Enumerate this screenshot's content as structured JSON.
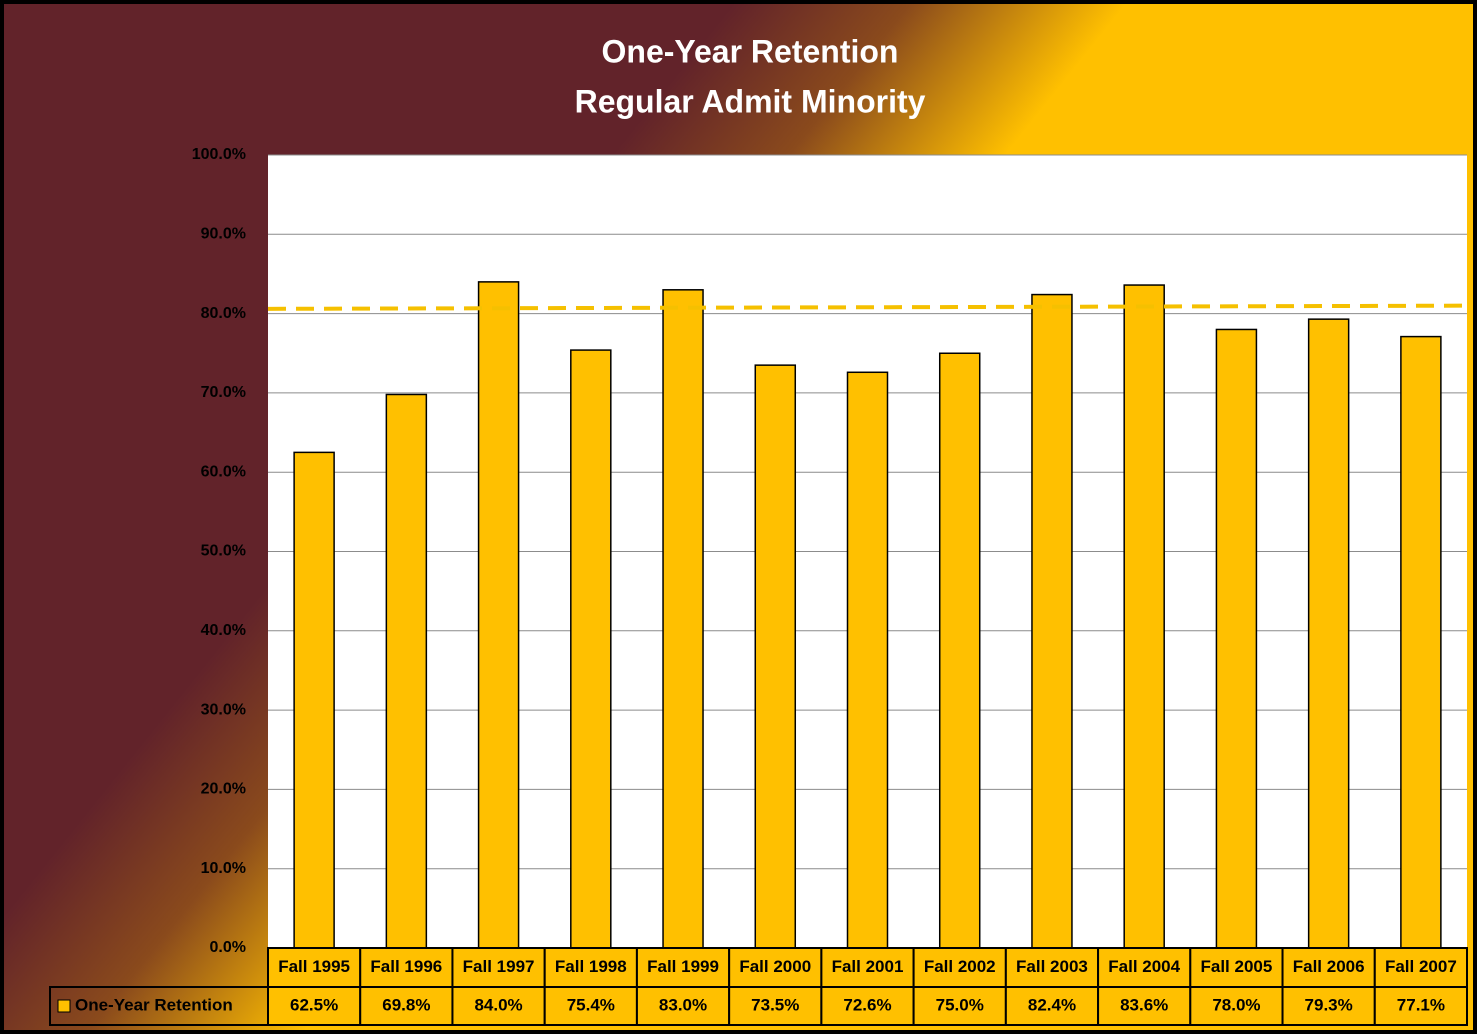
{
  "chart_data": {
    "type": "bar",
    "title": "One-Year Retention",
    "subtitle": "Regular Admit Minority",
    "categories": [
      "Fall 1995",
      "Fall 1996",
      "Fall 1997",
      "Fall 1998",
      "Fall 1999",
      "Fall 2000",
      "Fall 2001",
      "Fall 2002",
      "Fall 2003",
      "Fall 2004",
      "Fall 2005",
      "Fall 2006",
      "Fall 2007"
    ],
    "series": [
      {
        "name": "One-Year Retention",
        "color": "#ffc000",
        "values": [
          62.5,
          69.8,
          84.0,
          75.4,
          83.0,
          73.5,
          72.6,
          75.0,
          82.4,
          83.6,
          78.0,
          79.3,
          77.1
        ],
        "value_labels": [
          "62.5%",
          "69.8%",
          "84.0%",
          "75.4%",
          "83.0%",
          "73.5%",
          "72.6%",
          "75.0%",
          "82.4%",
          "83.6%",
          "78.0%",
          "79.3%",
          "77.1%"
        ]
      }
    ],
    "reference_line": {
      "values": [
        80.6,
        81.0
      ],
      "color": "#f5c000",
      "dashed": true
    },
    "ylim": [
      0,
      100
    ],
    "yticks": [
      {
        "value": 0,
        "label": "0.0%"
      },
      {
        "value": 10,
        "label": "10.0%"
      },
      {
        "value": 20,
        "label": "20.0%"
      },
      {
        "value": 30,
        "label": "30.0%"
      },
      {
        "value": 40,
        "label": "40.0%"
      },
      {
        "value": 50,
        "label": "50.0%"
      },
      {
        "value": 60,
        "label": "60.0%"
      },
      {
        "value": 70,
        "label": "70.0%"
      },
      {
        "value": 80,
        "label": "80.0%"
      },
      {
        "value": 90,
        "label": "90.0%"
      },
      {
        "value": 100,
        "label": "100.0%"
      }
    ],
    "grid": true
  }
}
